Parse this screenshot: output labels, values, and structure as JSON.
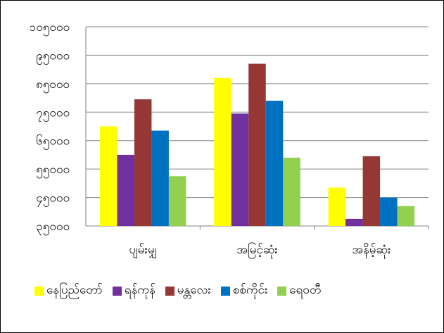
{
  "chart_data": {
    "type": "bar",
    "title": "",
    "xlabel": "",
    "ylabel": "",
    "categories": [
      "ပျမ်းမျှ",
      "အမြင့်ဆုံး",
      "အနိမ့်ဆုံး"
    ],
    "series": [
      {
        "name": "နေပြည်တော်",
        "color": "#FFFF00",
        "values": [
          70000,
          87000,
          48500
        ]
      },
      {
        "name": "ရန်ကုန်",
        "color": "#7030A0",
        "values": [
          60000,
          74500,
          37500
        ]
      },
      {
        "name": "မန္တလေး",
        "color": "#953735",
        "values": [
          79500,
          92000,
          59500
        ]
      },
      {
        "name": "စစ်ကိုင်း",
        "color": "#0070C0",
        "values": [
          68500,
          79000,
          45000
        ]
      },
      {
        "name": "ရေဝတီ",
        "color": "#92D050",
        "values": [
          52500,
          59000,
          42000
        ]
      }
    ],
    "ylim": [
      35000,
      105000
    ],
    "yticks": [
      35000,
      45000,
      55000,
      65000,
      75000,
      85000,
      95000,
      105000
    ],
    "ytick_labels": [
      "၃၅၀၀၀",
      "၄၅၀၀၀",
      "၅၅၀၀၀",
      "၆၅၀၀၀",
      "၇၅၀၀၀",
      "၈၅၀၀၀",
      "၉၅၀၀၀",
      "၁၀၅၀၀၀"
    ],
    "grid": true,
    "legend_position": "bottom"
  }
}
